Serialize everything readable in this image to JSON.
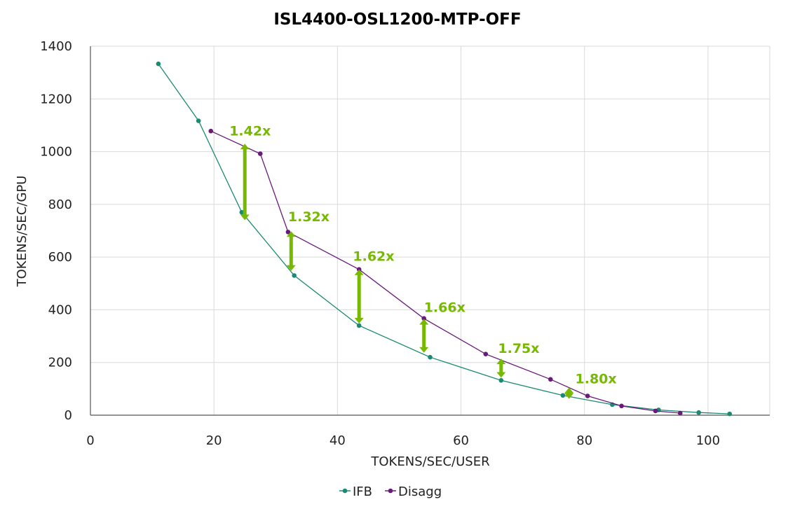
{
  "chart_data": {
    "type": "line",
    "title": "ISL4400-OSL1200-MTP-OFF",
    "xlabel": "TOKENS/SEC/USER",
    "ylabel": "TOKENS/SEC/GPU",
    "xlim": [
      0,
      110
    ],
    "ylim": [
      0,
      1400
    ],
    "xticks": [
      0,
      20,
      40,
      60,
      80,
      100
    ],
    "yticks": [
      0,
      200,
      400,
      600,
      800,
      1000,
      1200,
      1400
    ],
    "grid": true,
    "legend_position": "bottom",
    "series": [
      {
        "name": "IFB",
        "color": "#1b8a72",
        "points": [
          [
            11,
            1333
          ],
          [
            17.5,
            1117
          ],
          [
            24.5,
            770
          ],
          [
            33,
            530
          ],
          [
            43.5,
            340
          ],
          [
            55,
            220
          ],
          [
            66.5,
            132
          ],
          [
            76.5,
            75
          ],
          [
            84.5,
            40
          ],
          [
            92,
            20
          ],
          [
            98.5,
            10
          ],
          [
            103.5,
            5
          ]
        ]
      },
      {
        "name": "Disagg",
        "color": "#6a1b7a",
        "points": [
          [
            19.5,
            1078
          ],
          [
            27.5,
            992
          ],
          [
            32,
            695
          ],
          [
            43.5,
            553
          ],
          [
            54,
            367
          ],
          [
            64,
            232
          ],
          [
            74.5,
            136
          ],
          [
            80.5,
            73
          ],
          [
            86,
            35
          ],
          [
            91.5,
            16
          ],
          [
            95.5,
            8
          ]
        ]
      }
    ],
    "annotations": [
      {
        "label": "1.42x",
        "x": 25,
        "y_top": 1030,
        "y_bottom": 740,
        "label_x": 22.5,
        "label_y": 1080
      },
      {
        "label": "1.32x",
        "x": 32.5,
        "y_top": 698,
        "y_bottom": 548,
        "label_x": 32,
        "label_y": 755
      },
      {
        "label": "1.62x",
        "x": 43.5,
        "y_top": 553,
        "y_bottom": 348,
        "label_x": 42.5,
        "label_y": 605
      },
      {
        "label": "1.66x",
        "x": 54,
        "y_top": 365,
        "y_bottom": 237,
        "label_x": 54,
        "label_y": 410
      },
      {
        "label": "1.75x",
        "x": 66.5,
        "y_top": 215,
        "y_bottom": 142,
        "label_x": 66,
        "label_y": 255
      },
      {
        "label": "1.80x",
        "x": 77.5,
        "y_top": 105,
        "y_bottom": 62,
        "label_x": 78.5,
        "label_y": 140
      }
    ],
    "annotation_color": "#76b900"
  }
}
